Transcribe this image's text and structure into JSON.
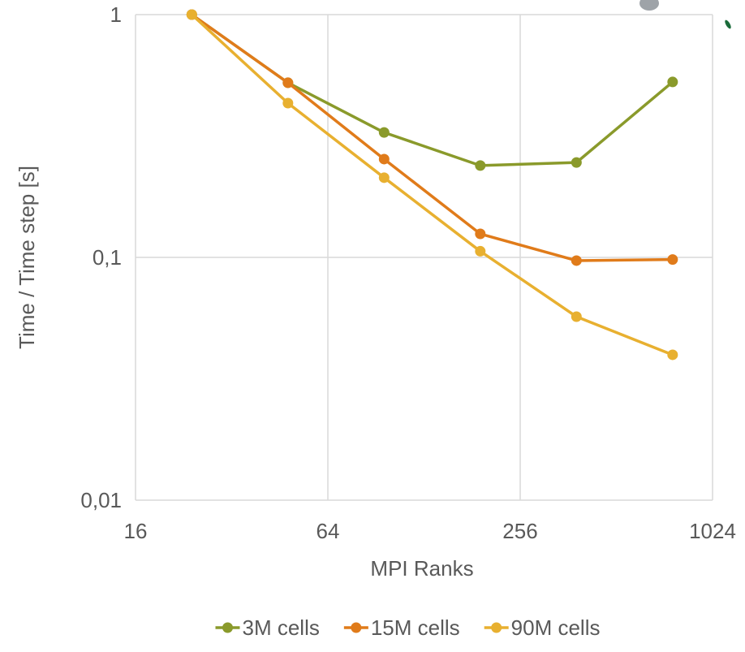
{
  "chart_data": {
    "type": "line",
    "x_label": "MPI Ranks",
    "y_label": "Time / Time step [s]",
    "x": [
      24,
      48,
      96,
      192,
      384,
      768
    ],
    "series": [
      {
        "name": "3M cells",
        "color": "#8a9a2b",
        "values": [
          1,
          0.524,
          0.327,
          0.239,
          0.246,
          0.528
        ]
      },
      {
        "name": "15M cells",
        "color": "#e07b1a",
        "values": [
          1,
          0.524,
          0.254,
          0.125,
          0.097,
          0.098
        ]
      },
      {
        "name": "90M cells",
        "color": "#e8b030",
        "values": [
          1,
          0.432,
          0.213,
          0.106,
          0.057,
          0.0397
        ]
      }
    ],
    "xscale": "log",
    "yscale": "log",
    "xlim": [
      16,
      1024
    ],
    "xticks": [
      16,
      64,
      256,
      1024
    ],
    "ylim": [
      0.01,
      1
    ],
    "yticks": [
      {
        "value": 0.01,
        "label": "0,01"
      },
      {
        "value": 0.1,
        "label": "0,1"
      },
      1
    ],
    "grid": true,
    "legend": "bottom"
  }
}
